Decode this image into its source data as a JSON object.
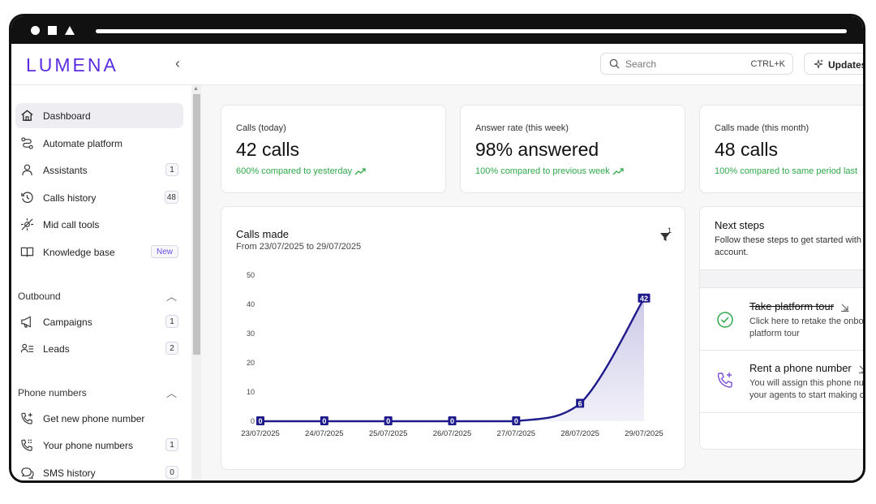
{
  "app": {
    "logo": "LUMENA",
    "collapse_glyph": "‹"
  },
  "header": {
    "search_placeholder": "Search",
    "search_shortcut": "CTRL+K",
    "updates_label": "Updates"
  },
  "sidebar": {
    "items": [
      {
        "label": "Dashboard",
        "icon": "home-icon",
        "active": true
      },
      {
        "label": "Automate platform",
        "icon": "workflow-icon"
      },
      {
        "label": "Assistants",
        "icon": "user-icon",
        "badge": "1"
      },
      {
        "label": "Calls history",
        "icon": "history-icon",
        "badge": "48"
      },
      {
        "label": "Mid call tools",
        "icon": "tools-icon"
      },
      {
        "label": "Knowledge base",
        "icon": "book-icon",
        "badge": "New"
      }
    ],
    "outbound": {
      "title": "Outbound",
      "items": [
        {
          "label": "Campaigns",
          "icon": "megaphone-icon",
          "badge": "1"
        },
        {
          "label": "Leads",
          "icon": "leads-icon",
          "badge": "2"
        }
      ]
    },
    "phone_numbers": {
      "title": "Phone numbers",
      "items": [
        {
          "label": "Get new phone number",
          "icon": "phone-plus-icon"
        },
        {
          "label": "Your phone numbers",
          "icon": "phone-grid-icon",
          "badge": "1"
        },
        {
          "label": "SMS history",
          "icon": "sms-icon",
          "badge": "0"
        }
      ]
    }
  },
  "stats": [
    {
      "label": "Calls (today)",
      "value": "42 calls",
      "compare": "600% compared to yesterday"
    },
    {
      "label": "Answer rate (this week)",
      "value": "98% answered",
      "compare": "100% compared to previous week"
    },
    {
      "label": "Calls made (this month)",
      "value": "48 calls",
      "compare": "100% compared to same period last"
    }
  ],
  "chart": {
    "title": "Calls made",
    "range": "From 23/07/2025 to 29/07/2025",
    "filter_count": "1"
  },
  "chart_data": {
    "type": "area",
    "title": "Calls made",
    "subtitle": "From 23/07/2025 to 29/07/2025",
    "x": [
      "23/07/2025",
      "24/07/2025",
      "25/07/2025",
      "26/07/2025",
      "27/07/2025",
      "28/07/2025",
      "29/07/2025"
    ],
    "values": [
      0,
      0,
      0,
      0,
      0,
      6,
      42
    ],
    "point_labels": [
      "0",
      "0",
      "0",
      "0",
      "0",
      "6",
      "42"
    ],
    "yticks": [
      "0",
      "10",
      "20",
      "30",
      "40",
      "50"
    ],
    "ylim": [
      0,
      50
    ],
    "grid": false,
    "line_color": "#1e1a8c",
    "fill_color": "#c9c7e6"
  },
  "next_steps": {
    "title": "Next steps",
    "desc": "Follow these steps to get started with account.",
    "steps": [
      {
        "title": "Take platform tour",
        "desc": "Click here to retake the onbo platform tour",
        "done": true
      },
      {
        "title": "Rent a phone number",
        "desc": "You will assign this phone nu your agents to start making c",
        "done": false
      }
    ]
  },
  "colors": {
    "brand": "#5b2ee0",
    "positive": "#2fa84a",
    "chart_line": "#1e1a8c"
  }
}
